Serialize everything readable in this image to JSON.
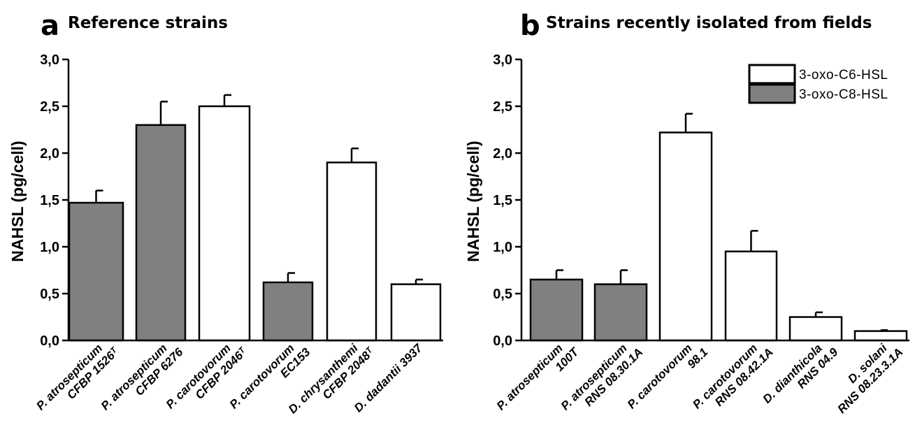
{
  "chart_data": [
    {
      "type": "bar",
      "panel_letter": "a",
      "title": "Reference strains",
      "ylabel": "NAHSL (pg/cell)",
      "xlabel": "",
      "ylim": [
        0,
        3.0
      ],
      "yticks": [
        "0,0",
        "0,5",
        "1,0",
        "1,5",
        "2,0",
        "2,5",
        "3,0"
      ],
      "categories": [
        [
          "P. atrosepticum",
          "CFBP 1526ᵀ"
        ],
        [
          "P. atrosepticum",
          "CFBP 6276"
        ],
        [
          "P. carotovorum",
          "CFBP 2046ᵀ"
        ],
        [
          "P. carotovorum",
          "EC153"
        ],
        [
          "D. chrysanthemi",
          "CFBP 2048ᵀ"
        ],
        [
          "D. dadantii 3937"
        ]
      ],
      "values": [
        1.47,
        2.3,
        2.5,
        0.62,
        1.9,
        0.6
      ],
      "errors": [
        0.13,
        0.25,
        0.12,
        0.1,
        0.15,
        0.05
      ],
      "fill": [
        "gray",
        "gray",
        "white",
        "gray",
        "white",
        "white"
      ],
      "grid": false
    },
    {
      "type": "bar",
      "panel_letter": "b",
      "title": "Strains recently isolated from fields",
      "ylabel": "NAHSL (pg/cell)",
      "xlabel": "",
      "ylim": [
        0,
        3.0
      ],
      "yticks": [
        "0,0",
        "0,5",
        "1,0",
        "1,5",
        "2,0",
        "2,5",
        "3,0"
      ],
      "categories": [
        [
          "P. atrosepticum",
          "100T"
        ],
        [
          "P. atrosepticum",
          "RNS 08.30.1A"
        ],
        [
          "P. carotovorum",
          "98.1"
        ],
        [
          "P. carotovorum",
          "RNS 08.42.1A"
        ],
        [
          "D. dianthicola",
          "RNS 04.9"
        ],
        [
          "D. solani",
          "RNS 08.23.3.1A"
        ]
      ],
      "values": [
        0.65,
        0.6,
        2.22,
        0.95,
        0.25,
        0.1
      ],
      "errors": [
        0.1,
        0.15,
        0.2,
        0.22,
        0.05,
        0.01
      ],
      "fill": [
        "gray",
        "gray",
        "white",
        "white",
        "white",
        "white"
      ],
      "grid": false,
      "legend": {
        "placement": "top-right",
        "entries": [
          {
            "label": "3-oxo-C6-HSL",
            "fill": "white"
          },
          {
            "label": "3-oxo-C8-HSL",
            "fill": "gray"
          }
        ]
      }
    }
  ],
  "colors": {
    "gray": "#808080",
    "white": "#ffffff",
    "stroke": "#000000"
  }
}
